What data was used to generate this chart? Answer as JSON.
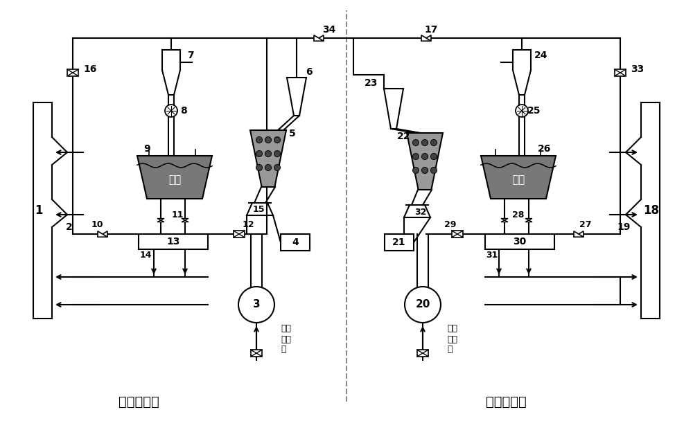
{
  "bg_color": "#ffffff",
  "label_left": "锅炉甲系统",
  "label_right": "锅炉乙系统",
  "powder_bin_label": "粉仓",
  "hot_wind_label": "入磨\n热风\n来",
  "powder_bin_fill": "#787878",
  "coal_fill": "#999999",
  "coal_dot_fill": "#444444",
  "center_line_color": "#888888",
  "line_color": "#000000"
}
